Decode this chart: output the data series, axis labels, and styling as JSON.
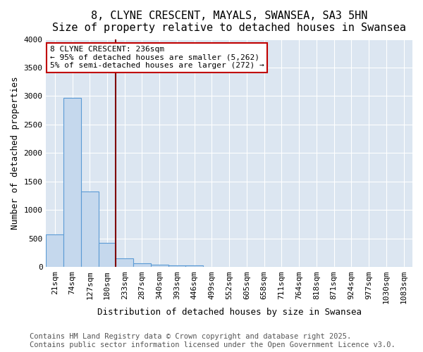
{
  "title": "8, CLYNE CRESCENT, MAYALS, SWANSEA, SA3 5HN",
  "subtitle": "Size of property relative to detached houses in Swansea",
  "xlabel": "Distribution of detached houses by size in Swansea",
  "ylabel": "Number of detached properties",
  "bar_values": [
    570,
    2970,
    1330,
    420,
    155,
    70,
    45,
    30,
    30,
    0,
    0,
    0,
    0,
    0,
    0,
    0,
    0,
    0,
    0,
    0,
    0
  ],
  "categories": [
    "21sqm",
    "74sqm",
    "127sqm",
    "180sqm",
    "233sqm",
    "287sqm",
    "340sqm",
    "393sqm",
    "446sqm",
    "499sqm",
    "552sqm",
    "605sqm",
    "658sqm",
    "711sqm",
    "764sqm",
    "818sqm",
    "871sqm",
    "924sqm",
    "977sqm",
    "1030sqm",
    "1083sqm"
  ],
  "bar_color": "#c5d8ed",
  "bar_edge_color": "#5b9bd5",
  "bg_color": "#dce6f1",
  "annotation_box_text": "8 CLYNE CRESCENT: 236sqm\n← 95% of detached houses are smaller (5,262)\n5% of semi-detached houses are larger (272) →",
  "annotation_box_color": "#ffffff",
  "annotation_box_edge_color": "#c00000",
  "vline_x_index": 3.5,
  "vline_color": "#7f0000",
  "ylim": [
    0,
    4000
  ],
  "yticks": [
    0,
    500,
    1000,
    1500,
    2000,
    2500,
    3000,
    3500,
    4000
  ],
  "footer_line1": "Contains HM Land Registry data © Crown copyright and database right 2025.",
  "footer_line2": "Contains public sector information licensed under the Open Government Licence v3.0.",
  "title_fontsize": 11,
  "subtitle_fontsize": 10,
  "axis_label_fontsize": 9,
  "tick_fontsize": 8,
  "footer_fontsize": 7.5,
  "annotation_fontsize": 8
}
